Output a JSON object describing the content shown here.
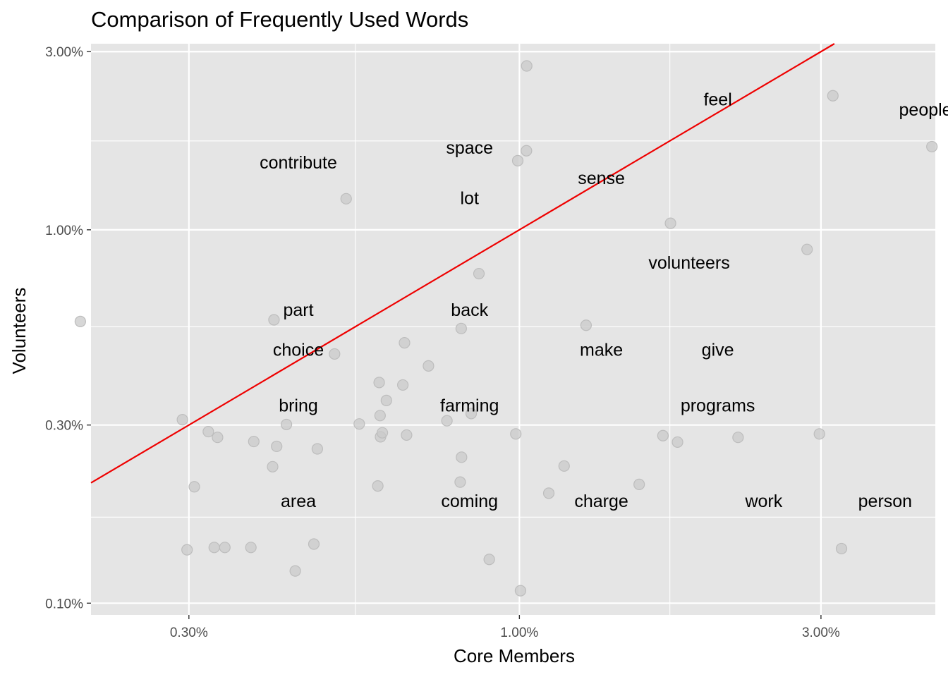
{
  "chart_data": {
    "type": "scatter",
    "title": "Comparison of Frequently Used Words",
    "xlabel": "Core Members",
    "ylabel": "Volunteers",
    "x_scale": "log10",
    "y_scale": "log10",
    "xlim": [
      0.0021,
      0.0455
    ],
    "ylim": [
      0.00093,
      0.0315
    ],
    "x_ticks": [
      {
        "value": 0.003,
        "label": "0.30%"
      },
      {
        "value": 0.01,
        "label": "1.00%"
      },
      {
        "value": 0.03,
        "label": "3.00%"
      }
    ],
    "y_ticks": [
      {
        "value": 0.001,
        "label": "0.10%"
      },
      {
        "value": 0.003,
        "label": "0.30%"
      },
      {
        "value": 0.01,
        "label": "1.00%"
      },
      {
        "value": 0.03,
        "label": "3.00%"
      }
    ],
    "x_minor_ticks": [
      0.0055,
      0.0173
    ],
    "y_minor_ticks": [
      0.0017,
      0.0055,
      0.0173
    ],
    "grid": true,
    "legend": "none",
    "reference_line": {
      "slope": 1,
      "intercept": 0,
      "color": "#ee0000"
    },
    "point_color": "#c9c9c9",
    "points": [
      [
        0.00202,
        0.00568
      ],
      [
        0.00293,
        0.0031
      ],
      [
        0.00298,
        0.00139
      ],
      [
        0.00306,
        0.00205
      ],
      [
        0.00322,
        0.00288
      ],
      [
        0.00329,
        0.00141
      ],
      [
        0.00333,
        0.00278
      ],
      [
        0.00342,
        0.00141
      ],
      [
        0.00376,
        0.00141
      ],
      [
        0.0038,
        0.00271
      ],
      [
        0.00407,
        0.00232
      ],
      [
        0.00409,
        0.00574
      ],
      [
        0.00413,
        0.00263
      ],
      [
        0.00428,
        0.00301
      ],
      [
        0.00442,
        0.00122
      ],
      [
        0.00473,
        0.00144
      ],
      [
        0.00479,
        0.00259
      ],
      [
        0.0051,
        0.00465
      ],
      [
        0.00532,
        0.01211
      ],
      [
        0.00558,
        0.00302
      ],
      [
        0.00597,
        0.00206
      ],
      [
        0.006,
        0.0039
      ],
      [
        0.00602,
        0.00318
      ],
      [
        0.00603,
        0.00279
      ],
      [
        0.00607,
        0.00286
      ],
      [
        0.00616,
        0.00349
      ],
      [
        0.00654,
        0.00384
      ],
      [
        0.00658,
        0.00498
      ],
      [
        0.00663,
        0.00282
      ],
      [
        0.00718,
        0.00432
      ],
      [
        0.00768,
        0.00308
      ],
      [
        0.00806,
        0.00211
      ],
      [
        0.00809,
        0.00544
      ],
      [
        0.0081,
        0.00246
      ],
      [
        0.00839,
        0.00322
      ],
      [
        0.00863,
        0.00763
      ],
      [
        0.00896,
        0.00131
      ],
      [
        0.00987,
        0.00284
      ],
      [
        0.00994,
        0.01531
      ],
      [
        0.01004,
        0.00108
      ],
      [
        0.01026,
        0.01628
      ],
      [
        0.01027,
        0.02747
      ],
      [
        0.01113,
        0.00197
      ],
      [
        0.01177,
        0.00233
      ],
      [
        0.01275,
        0.00555
      ],
      [
        0.01547,
        0.00208
      ],
      [
        0.01687,
        0.00281
      ],
      [
        0.01734,
        0.01041
      ],
      [
        0.01779,
        0.0027
      ],
      [
        0.02218,
        0.00278
      ],
      [
        0.02852,
        0.00886
      ],
      [
        0.02983,
        0.00284
      ],
      [
        0.03133,
        0.02286
      ],
      [
        0.03233,
        0.0014
      ],
      [
        0.04494,
        0.0167
      ]
    ],
    "word_labels": [
      {
        "text": "feel",
        "x": 0.0206,
        "y": 0.0224
      },
      {
        "text": "people",
        "x": 0.0439,
        "y": 0.021
      },
      {
        "text": "space",
        "x": 0.00834,
        "y": 0.01663
      },
      {
        "text": "contribute",
        "x": 0.00447,
        "y": 0.01516
      },
      {
        "text": "sense",
        "x": 0.01348,
        "y": 0.01378
      },
      {
        "text": "lot",
        "x": 0.00834,
        "y": 0.01217
      },
      {
        "text": "volunteers",
        "x": 0.01856,
        "y": 0.00818
      },
      {
        "text": "part",
        "x": 0.00447,
        "y": 0.00611
      },
      {
        "text": "back",
        "x": 0.00834,
        "y": 0.00611
      },
      {
        "text": "choice",
        "x": 0.00447,
        "y": 0.00478
      },
      {
        "text": "make",
        "x": 0.01348,
        "y": 0.00478
      },
      {
        "text": "give",
        "x": 0.0206,
        "y": 0.00478
      },
      {
        "text": "bring",
        "x": 0.00447,
        "y": 0.00339
      },
      {
        "text": "farming",
        "x": 0.00834,
        "y": 0.00339
      },
      {
        "text": "programs",
        "x": 0.0206,
        "y": 0.00339
      },
      {
        "text": "area",
        "x": 0.00447,
        "y": 0.00188
      },
      {
        "text": "coming",
        "x": 0.00834,
        "y": 0.00188
      },
      {
        "text": "charge",
        "x": 0.01348,
        "y": 0.00188
      },
      {
        "text": "work",
        "x": 0.02436,
        "y": 0.00188
      },
      {
        "text": "person",
        "x": 0.0379,
        "y": 0.00188
      }
    ]
  },
  "colors": {
    "panel": "#e5e5e5",
    "grid": "#ffffff",
    "axis_tick": "#333333",
    "tick_text": "#4d4d4d",
    "reference_line": "#ee0000",
    "point": "#c9c9c9",
    "point_stroke": "#bdbdbd"
  }
}
